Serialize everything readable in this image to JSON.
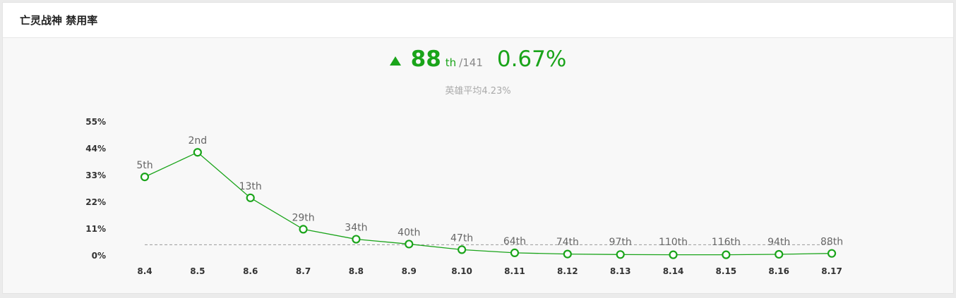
{
  "panel": {
    "title": "亡灵战神 禁用率"
  },
  "summary": {
    "rank": "88",
    "rank_suffix": "th",
    "rank_total": "/141",
    "rate": "0.67%",
    "average_text": "英雄平均4.23%",
    "trend_icon": "triangle-up-icon"
  },
  "colors": {
    "accent": "#1aa41a",
    "line": "#1aa41a",
    "average_line": "#999999",
    "muted_text": "#aaaaaa"
  },
  "chart_data": {
    "type": "line",
    "title": "",
    "xlabel": "",
    "ylabel": "",
    "categories": [
      "8.4",
      "8.5",
      "8.6",
      "8.7",
      "8.8",
      "8.9",
      "8.10",
      "8.11",
      "8.12",
      "8.13",
      "8.14",
      "8.15",
      "8.16",
      "8.17"
    ],
    "yticks": [
      "55%",
      "44%",
      "33%",
      "22%",
      "11%",
      "0%"
    ],
    "ylim": [
      0,
      55
    ],
    "average": 4.23,
    "grid": false,
    "series": [
      {
        "values": [
          32.1,
          42.2,
          23.5,
          10.6,
          6.5,
          4.5,
          2.2,
          0.9,
          0.4,
          0.2,
          0.1,
          0.1,
          0.3,
          0.67
        ],
        "rank_labels": [
          "5th",
          "2nd",
          "13th",
          "29th",
          "34th",
          "40th",
          "47th",
          "64th",
          "74th",
          "97th",
          "110th",
          "116th",
          "94th",
          "88th"
        ]
      }
    ]
  }
}
